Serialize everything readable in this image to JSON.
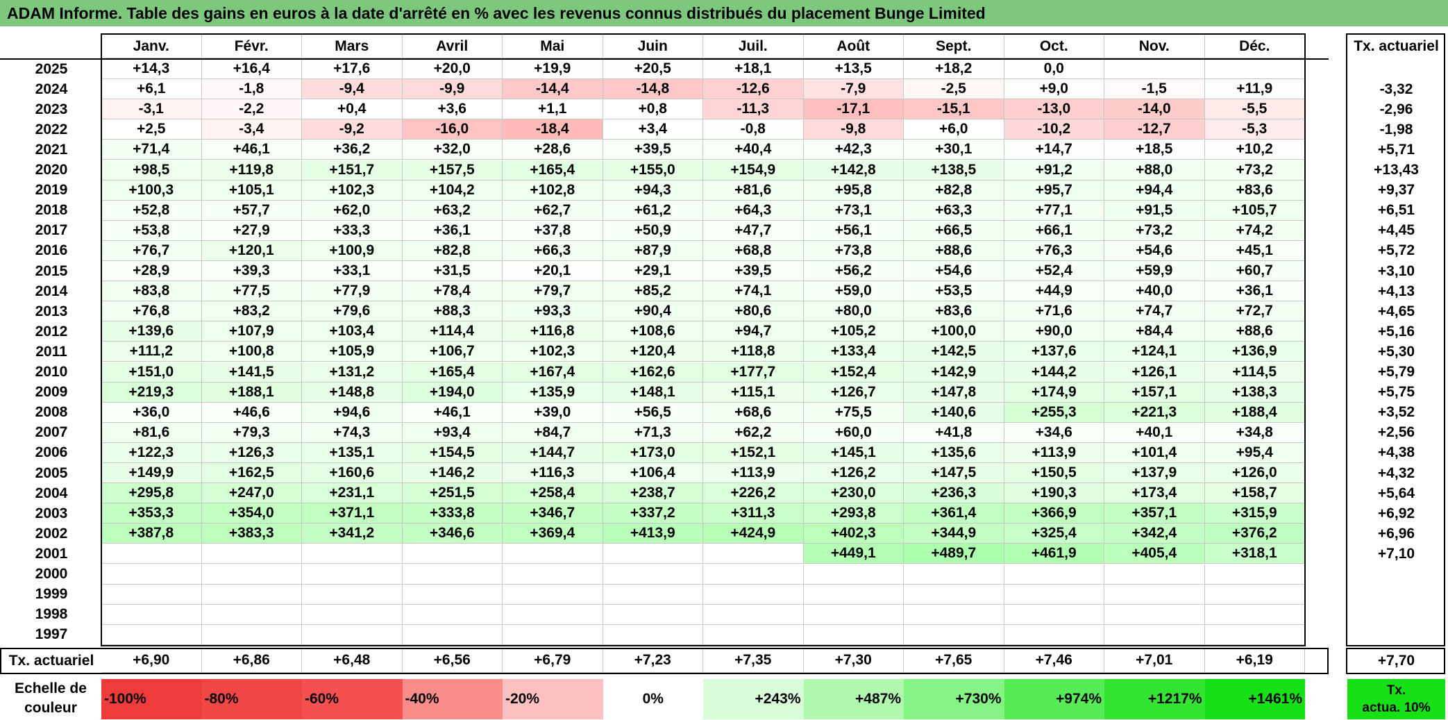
{
  "title": "ADAM Informe. Table des gains en euros à la date d'arrêté en % avec les revenus connus distribués du placement Bunge Limited",
  "months": [
    "Janv.",
    "Févr.",
    "Mars",
    "Avril",
    "Mai",
    "Juin",
    "Juil.",
    "Août",
    "Sept.",
    "Oct.",
    "Nov.",
    "Déc."
  ],
  "actuarial_header": "Tx. actuariel",
  "rows": [
    {
      "year": "2025",
      "values": [
        "+14,3",
        "+16,4",
        "+17,6",
        "+20,0",
        "+19,9",
        "+20,5",
        "+18,1",
        "+13,5",
        "+18,2",
        "0,0",
        "",
        ""
      ],
      "rate": ""
    },
    {
      "year": "2024",
      "values": [
        "+6,1",
        "-1,8",
        "-9,4",
        "-9,9",
        "-14,4",
        "-14,8",
        "-12,6",
        "-7,9",
        "-2,5",
        "+9,0",
        "-1,5",
        "+11,9"
      ],
      "rate": "-3,32"
    },
    {
      "year": "2023",
      "values": [
        "-3,1",
        "-2,2",
        "+0,4",
        "+3,6",
        "+1,1",
        "+0,8",
        "-11,3",
        "-17,1",
        "-15,1",
        "-13,0",
        "-14,0",
        "-5,5"
      ],
      "rate": "-2,96"
    },
    {
      "year": "2022",
      "values": [
        "+2,5",
        "-3,4",
        "-9,2",
        "-16,0",
        "-18,4",
        "+3,4",
        "-0,8",
        "-9,8",
        "+6,0",
        "-10,2",
        "-12,7",
        "-5,3"
      ],
      "rate": "-1,98"
    },
    {
      "year": "2021",
      "values": [
        "+71,4",
        "+46,1",
        "+36,2",
        "+32,0",
        "+28,6",
        "+39,5",
        "+40,4",
        "+42,3",
        "+30,1",
        "+14,7",
        "+18,5",
        "+10,2"
      ],
      "rate": "+5,71"
    },
    {
      "year": "2020",
      "values": [
        "+98,5",
        "+119,8",
        "+151,7",
        "+157,5",
        "+165,4",
        "+155,0",
        "+154,9",
        "+142,8",
        "+138,5",
        "+91,2",
        "+88,0",
        "+73,2"
      ],
      "rate": "+13,43"
    },
    {
      "year": "2019",
      "values": [
        "+100,3",
        "+105,1",
        "+102,3",
        "+104,2",
        "+102,8",
        "+94,3",
        "+81,6",
        "+95,8",
        "+82,8",
        "+95,7",
        "+94,4",
        "+83,6"
      ],
      "rate": "+9,37"
    },
    {
      "year": "2018",
      "values": [
        "+52,8",
        "+57,7",
        "+62,0",
        "+63,2",
        "+62,7",
        "+61,2",
        "+64,3",
        "+73,1",
        "+63,3",
        "+77,1",
        "+91,5",
        "+105,7"
      ],
      "rate": "+6,51"
    },
    {
      "year": "2017",
      "values": [
        "+53,8",
        "+27,9",
        "+33,3",
        "+36,1",
        "+37,8",
        "+50,9",
        "+47,7",
        "+56,1",
        "+66,5",
        "+66,1",
        "+73,2",
        "+74,2"
      ],
      "rate": "+4,45"
    },
    {
      "year": "2016",
      "values": [
        "+76,7",
        "+120,1",
        "+100,9",
        "+82,8",
        "+66,3",
        "+87,9",
        "+68,8",
        "+73,8",
        "+88,6",
        "+76,3",
        "+54,6",
        "+45,1"
      ],
      "rate": "+5,72"
    },
    {
      "year": "2015",
      "values": [
        "+28,9",
        "+39,3",
        "+33,1",
        "+31,5",
        "+20,1",
        "+29,1",
        "+39,5",
        "+56,2",
        "+54,6",
        "+52,4",
        "+59,9",
        "+60,7"
      ],
      "rate": "+3,10"
    },
    {
      "year": "2014",
      "values": [
        "+83,8",
        "+77,5",
        "+77,9",
        "+78,4",
        "+79,7",
        "+85,2",
        "+74,1",
        "+59,0",
        "+53,5",
        "+44,9",
        "+40,0",
        "+36,1"
      ],
      "rate": "+4,13"
    },
    {
      "year": "2013",
      "values": [
        "+76,8",
        "+83,2",
        "+79,6",
        "+88,3",
        "+93,3",
        "+90,4",
        "+80,6",
        "+80,0",
        "+83,6",
        "+71,6",
        "+74,7",
        "+72,7"
      ],
      "rate": "+4,65"
    },
    {
      "year": "2012",
      "values": [
        "+139,6",
        "+107,9",
        "+103,4",
        "+114,4",
        "+116,8",
        "+108,6",
        "+94,7",
        "+105,2",
        "+100,0",
        "+90,0",
        "+84,4",
        "+88,6"
      ],
      "rate": "+5,16"
    },
    {
      "year": "2011",
      "values": [
        "+111,2",
        "+100,8",
        "+105,9",
        "+106,7",
        "+102,3",
        "+120,4",
        "+118,8",
        "+133,4",
        "+142,5",
        "+137,6",
        "+124,1",
        "+136,9"
      ],
      "rate": "+5,30"
    },
    {
      "year": "2010",
      "values": [
        "+151,0",
        "+141,5",
        "+131,2",
        "+165,4",
        "+167,4",
        "+162,6",
        "+177,7",
        "+152,4",
        "+142,9",
        "+144,2",
        "+126,1",
        "+114,5"
      ],
      "rate": "+5,79"
    },
    {
      "year": "2009",
      "values": [
        "+219,3",
        "+188,1",
        "+148,8",
        "+194,0",
        "+135,9",
        "+148,1",
        "+115,1",
        "+126,7",
        "+147,8",
        "+174,9",
        "+157,1",
        "+138,3"
      ],
      "rate": "+5,75"
    },
    {
      "year": "2008",
      "values": [
        "+36,0",
        "+46,6",
        "+94,6",
        "+46,1",
        "+39,0",
        "+56,5",
        "+68,6",
        "+75,5",
        "+140,6",
        "+255,3",
        "+221,3",
        "+188,4"
      ],
      "rate": "+3,52"
    },
    {
      "year": "2007",
      "values": [
        "+81,6",
        "+79,3",
        "+74,3",
        "+93,4",
        "+84,7",
        "+71,3",
        "+62,2",
        "+60,0",
        "+41,8",
        "+34,6",
        "+40,1",
        "+34,8"
      ],
      "rate": "+2,56"
    },
    {
      "year": "2006",
      "values": [
        "+122,3",
        "+126,3",
        "+135,1",
        "+154,5",
        "+144,7",
        "+173,0",
        "+152,1",
        "+145,1",
        "+135,6",
        "+113,9",
        "+101,4",
        "+95,4"
      ],
      "rate": "+4,38"
    },
    {
      "year": "2005",
      "values": [
        "+149,9",
        "+162,5",
        "+160,6",
        "+146,2",
        "+116,3",
        "+106,4",
        "+113,9",
        "+126,2",
        "+147,5",
        "+150,5",
        "+137,9",
        "+126,0"
      ],
      "rate": "+4,32"
    },
    {
      "year": "2004",
      "values": [
        "+295,8",
        "+247,0",
        "+231,1",
        "+251,5",
        "+258,4",
        "+238,7",
        "+226,2",
        "+230,0",
        "+236,3",
        "+190,3",
        "+173,4",
        "+158,7"
      ],
      "rate": "+5,64"
    },
    {
      "year": "2003",
      "values": [
        "+353,3",
        "+354,0",
        "+371,1",
        "+333,8",
        "+346,7",
        "+337,2",
        "+311,3",
        "+293,8",
        "+361,4",
        "+366,9",
        "+357,1",
        "+315,9"
      ],
      "rate": "+6,92"
    },
    {
      "year": "2002",
      "values": [
        "+387,8",
        "+383,3",
        "+341,2",
        "+346,6",
        "+369,4",
        "+413,9",
        "+424,9",
        "+402,3",
        "+344,9",
        "+325,4",
        "+342,4",
        "+376,2"
      ],
      "rate": "+6,96"
    },
    {
      "year": "2001",
      "values": [
        "",
        "",
        "",
        "",
        "",
        "",
        "",
        "+449,1",
        "+489,7",
        "+461,9",
        "+405,4",
        "+318,1"
      ],
      "rate": "+7,10"
    },
    {
      "year": "2000",
      "values": [
        "",
        "",
        "",
        "",
        "",
        "",
        "",
        "",
        "",
        "",
        "",
        ""
      ],
      "rate": ""
    },
    {
      "year": "1999",
      "values": [
        "",
        "",
        "",
        "",
        "",
        "",
        "",
        "",
        "",
        "",
        "",
        ""
      ],
      "rate": ""
    },
    {
      "year": "1998",
      "values": [
        "",
        "",
        "",
        "",
        "",
        "",
        "",
        "",
        "",
        "",
        "",
        ""
      ],
      "rate": ""
    },
    {
      "year": "1997",
      "values": [
        "",
        "",
        "",
        "",
        "",
        "",
        "",
        "",
        "",
        "",
        "",
        ""
      ],
      "rate": ""
    }
  ],
  "footer": {
    "label": "Tx. actuariel",
    "values": [
      "+6,90",
      "+6,86",
      "+6,48",
      "+6,56",
      "+6,79",
      "+7,23",
      "+7,35",
      "+7,30",
      "+7,65",
      "+7,46",
      "+7,01",
      "+6,19"
    ],
    "total": "+7,70"
  },
  "scale": {
    "label_line1": "Echelle de",
    "label_line2": "couleur",
    "entries": [
      {
        "text": "-100%",
        "color": "#ee3c3c"
      },
      {
        "text": "-80%",
        "color": "#f04646"
      },
      {
        "text": "-60%",
        "color": "#f55050"
      },
      {
        "text": "-40%",
        "color": "#fa8c8c"
      },
      {
        "text": "-20%",
        "color": "#fcc0c0"
      },
      {
        "text": "0%",
        "color": "#ffffff"
      },
      {
        "text": "+243%",
        "color": "#d9fcd9"
      },
      {
        "text": "+487%",
        "color": "#b0f7b0"
      },
      {
        "text": "+730%",
        "color": "#86f386"
      },
      {
        "text": "+974%",
        "color": "#55ec55"
      },
      {
        "text": "+1217%",
        "color": "#33e433"
      },
      {
        "text": "+1461%",
        "color": "#16e016"
      }
    ],
    "actua_line1": "Tx.",
    "actua_line2": "actua. 10%",
    "actua_color": "#16e016"
  }
}
